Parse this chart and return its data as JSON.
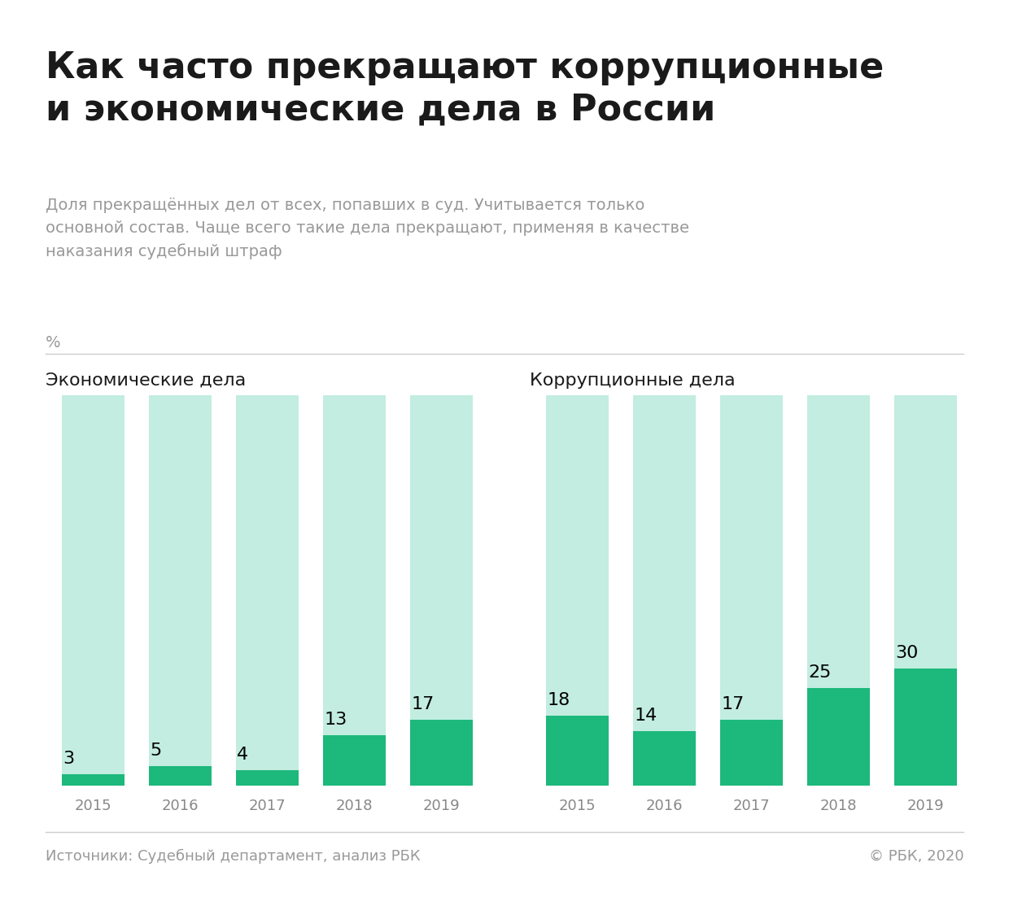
{
  "title": "Как часто прекращают коррупционные\nи экономические дела в России",
  "subtitle": "Доля прекращённых дел от всех, попавших в суд. Учитывается только\nосновной состав. Чаще всего такие дела прекращают, применяя в качестве\nнаказания судебный штраф",
  "ylabel": "%",
  "source": "Источники: Судебный департамент, анализ РБК",
  "copyright": "© РБК, 2020",
  "chart1_title": "Экономические дела",
  "chart2_title": "Коррупционные дела",
  "years": [
    "2015",
    "2016",
    "2017",
    "2018",
    "2019"
  ],
  "economic_values": [
    3,
    5,
    4,
    13,
    17
  ],
  "corruption_values": [
    18,
    14,
    17,
    25,
    30
  ],
  "max_value": 100,
  "bar_color": "#1DB87B",
  "bg_color": "#C2EDE0",
  "title_color": "#1a1a1a",
  "subtitle_color": "#999999",
  "source_color": "#999999",
  "background": "#FFFFFF",
  "separator_color": "#CCCCCC",
  "title_fontsize": 32,
  "subtitle_fontsize": 14,
  "chart_title_fontsize": 16,
  "value_fontsize": 16,
  "tick_fontsize": 13,
  "source_fontsize": 13
}
